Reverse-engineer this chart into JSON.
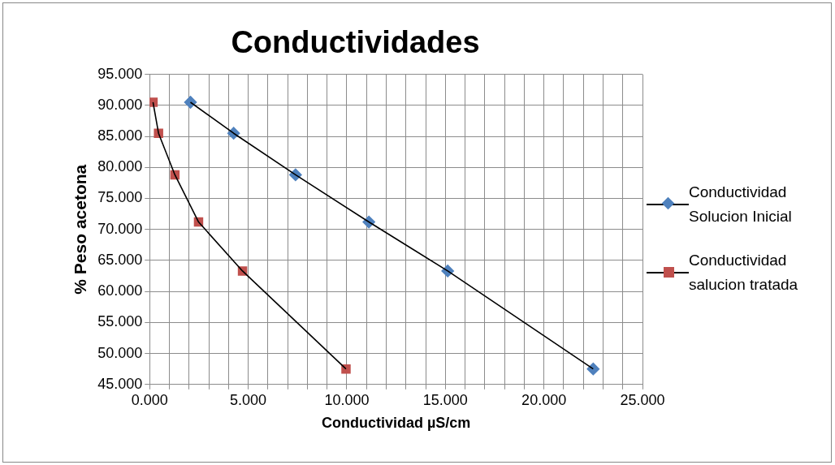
{
  "chart_data": {
    "type": "scatter",
    "title": "Conductividades",
    "xlabel": "Conductividad µS/cm",
    "ylabel": "% Peso acetona",
    "xlim": [
      0,
      25
    ],
    "xticks": [
      {
        "value": 0,
        "label": "0.000"
      },
      {
        "value": 1,
        "label": null
      },
      {
        "value": 2,
        "label": null
      },
      {
        "value": 3,
        "label": null
      },
      {
        "value": 4,
        "label": null
      },
      {
        "value": 5,
        "label": "5.000"
      },
      {
        "value": 6,
        "label": null
      },
      {
        "value": 7,
        "label": null
      },
      {
        "value": 8,
        "label": null
      },
      {
        "value": 9,
        "label": null
      },
      {
        "value": 10,
        "label": "10.000"
      },
      {
        "value": 11,
        "label": null
      },
      {
        "value": 12,
        "label": null
      },
      {
        "value": 13,
        "label": null
      },
      {
        "value": 14,
        "label": null
      },
      {
        "value": 15,
        "label": "15.000"
      },
      {
        "value": 16,
        "label": null
      },
      {
        "value": 17,
        "label": null
      },
      {
        "value": 18,
        "label": null
      },
      {
        "value": 19,
        "label": null
      },
      {
        "value": 20,
        "label": "20.000"
      },
      {
        "value": 21,
        "label": null
      },
      {
        "value": 22,
        "label": null
      },
      {
        "value": 23,
        "label": null
      },
      {
        "value": 24,
        "label": null
      },
      {
        "value": 25,
        "label": "25.000"
      }
    ],
    "ylim": [
      45,
      95
    ],
    "yticks": [
      {
        "value": 45,
        "label": "45.000"
      },
      {
        "value": 50,
        "label": "50.000"
      },
      {
        "value": 55,
        "label": "55.000"
      },
      {
        "value": 60,
        "label": "60.000"
      },
      {
        "value": 65,
        "label": "65.000"
      },
      {
        "value": 70,
        "label": "70.000"
      },
      {
        "value": 75,
        "label": "75.000"
      },
      {
        "value": 80,
        "label": "80.000"
      },
      {
        "value": 85,
        "label": "85.000"
      },
      {
        "value": 90,
        "label": "90.000"
      },
      {
        "value": 95,
        "label": "95.000"
      }
    ],
    "grid": true,
    "legend": "right",
    "line_style": "solid",
    "series": [
      {
        "type": "line",
        "color": "#000000",
        "marker": "none",
        "x": [
          2.07,
          4.26,
          7.4,
          11.12,
          15.12,
          22.5
        ],
        "values": [
          90.5,
          85.5,
          78.8,
          71.2,
          63.3,
          47.5
        ]
      },
      {
        "type": "line",
        "color": "#000000",
        "marker": "none",
        "x": [
          0.17,
          0.45,
          1.28,
          2.48,
          4.71,
          9.96
        ],
        "values": [
          90.5,
          85.5,
          78.8,
          71.2,
          63.3,
          47.5
        ]
      },
      {
        "name": "Conductividad Solucion Inicial",
        "color": "#4f81bd",
        "marker": "diamond",
        "x": [
          2.07,
          4.26,
          7.4,
          11.12,
          15.12,
          22.5
        ],
        "values": [
          90.5,
          85.5,
          78.8,
          71.2,
          63.3,
          47.5
        ]
      },
      {
        "name": "Conductividad salucion tratada",
        "color": "#c0504d",
        "marker": "square",
        "x": [
          0.17,
          0.45,
          1.28,
          2.48,
          4.71,
          9.96
        ],
        "values": [
          90.5,
          85.5,
          78.8,
          71.2,
          63.3,
          47.5
        ]
      }
    ]
  }
}
